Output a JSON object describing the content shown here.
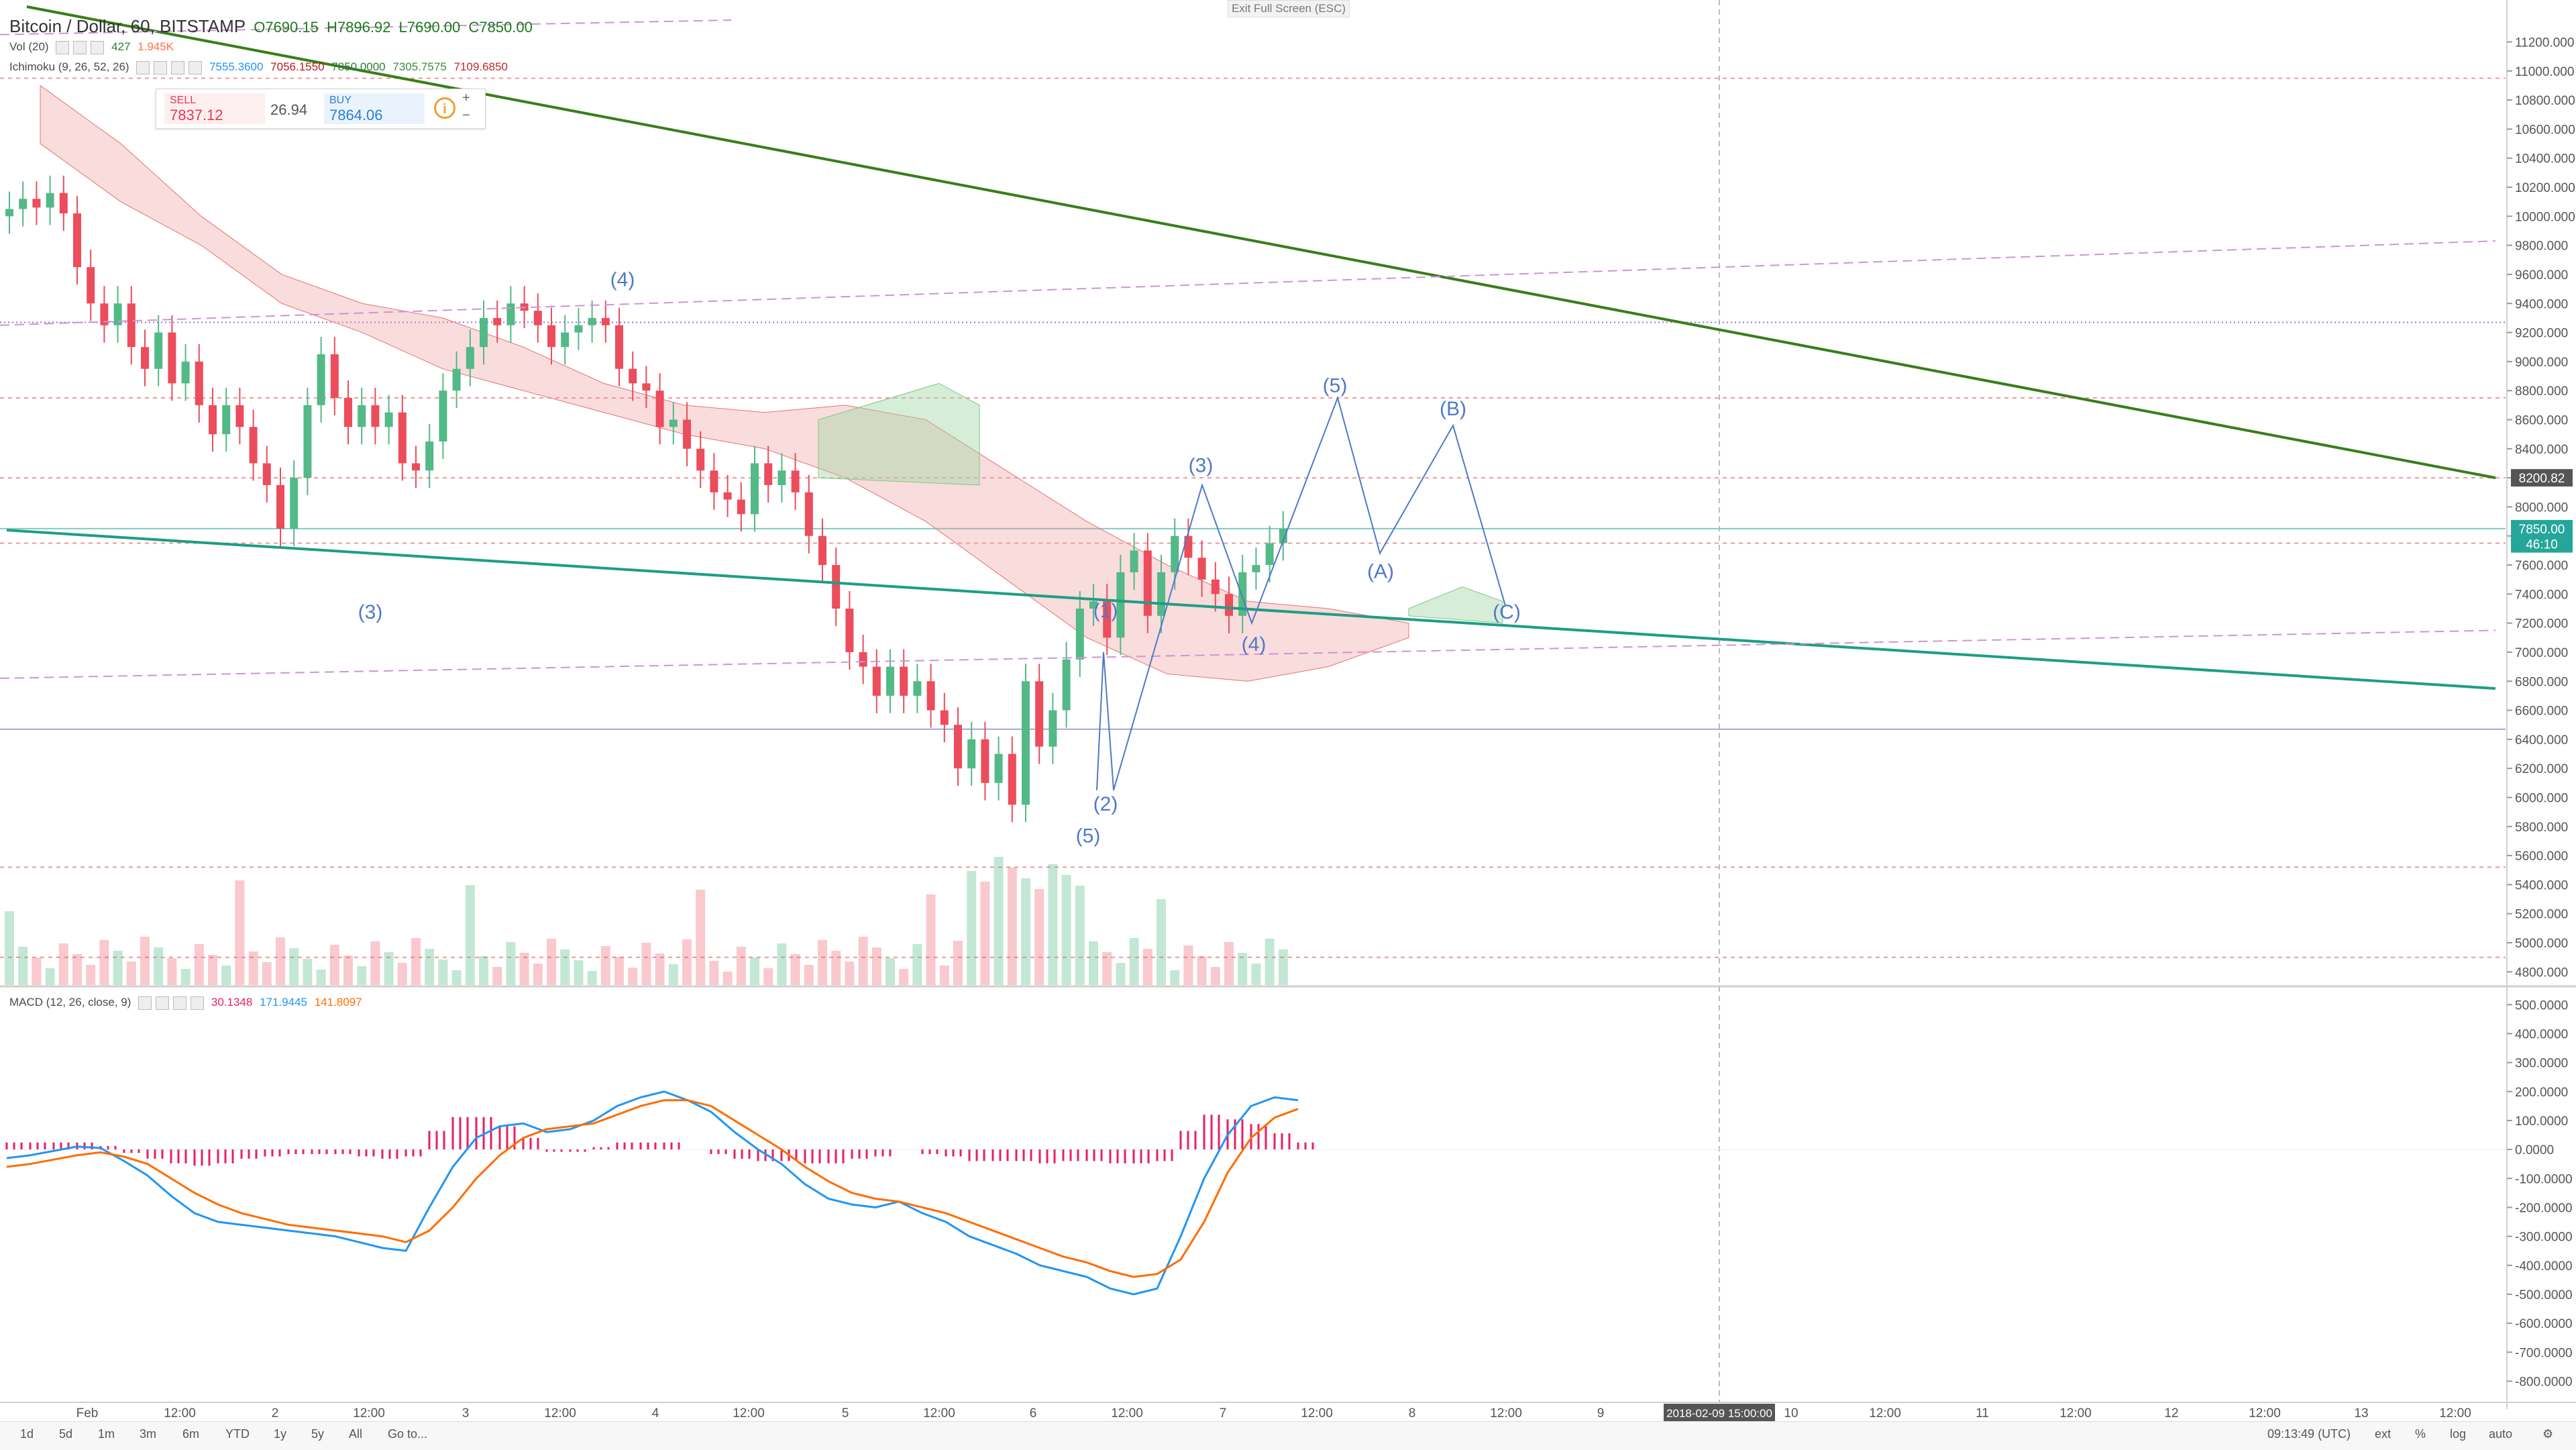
{
  "header": {
    "symbol": "Bitcoin / Dollar, 60, BITSTAMP",
    "ohlc": {
      "o": "O7690.15",
      "h": "H7896.92",
      "l": "L7690.00",
      "c": "C7850.00"
    },
    "vol_label": "Vol (20)",
    "vol_value": "427",
    "vol_ma": "1.945K",
    "ichimoku_label": "Ichimoku (9, 26, 52, 26)",
    "ichimoku_values": [
      "7555.3600",
      "7056.1550",
      "7850.0000",
      "7305.7575",
      "7109.6850"
    ],
    "exit_fullscreen": "Exit Full Screen (ESC)"
  },
  "trade_widget": {
    "sell_label": "SELL",
    "sell_price": "7837.12",
    "spread": "26.94",
    "buy_label": "BUY",
    "buy_price": "7864.06",
    "info_icon": "i",
    "plus": "+",
    "minus": "−"
  },
  "macd_header": {
    "label": "MACD (12, 26, close, 9)",
    "values": [
      "30.1348",
      "171.9445",
      "141.8097"
    ]
  },
  "bottom_bar": {
    "ranges": [
      "1d",
      "5d",
      "1m",
      "3m",
      "6m",
      "YTD",
      "1y",
      "5y",
      "All",
      "Go to..."
    ],
    "time": "09:13:49 (UTC)",
    "controls": [
      "ext",
      "%",
      "log",
      "auto"
    ]
  },
  "chart_data": {
    "type": "candlestick",
    "symbol": "Bitcoin / Dollar",
    "interval": "60",
    "exchange": "BITSTAMP",
    "price_axis": {
      "range": [
        4700,
        11350
      ],
      "ticks": [
        4800,
        5000,
        5200,
        5400,
        5600,
        5800,
        6000,
        6200,
        6400,
        6600,
        6800,
        7000,
        7200,
        7400,
        7600,
        7800,
        8000,
        8200,
        8400,
        8600,
        8800,
        9000,
        9200,
        9400,
        9600,
        9800,
        10000,
        10200,
        10400,
        10600,
        10800,
        11000,
        11200
      ],
      "last_price_label": "7850.00",
      "countdown_label": "46:10",
      "crosshair_label": "8200.82"
    },
    "macd_axis": {
      "range": [
        -850,
        540
      ],
      "ticks": [
        500,
        400,
        300,
        200,
        100,
        0,
        -100,
        -200,
        -300,
        -400,
        -500,
        -600,
        -700,
        -800
      ]
    },
    "time_axis": {
      "labels": [
        "Feb",
        "12:00",
        "2",
        "12:00",
        "3",
        "12:00",
        "4",
        "12:00",
        "5",
        "12:00",
        "6",
        "12:00",
        "7",
        "12:00",
        "8",
        "12:00",
        "9",
        "10",
        "12:00",
        "11",
        "12:00",
        "12",
        "12:00",
        "13",
        "12:00"
      ],
      "crosshair_label": "2018-02-09 15:00:00"
    },
    "close_series": [
      10050,
      10120,
      10060,
      10160,
      10020,
      9650,
      9400,
      9250,
      9400,
      9100,
      8950,
      9200,
      8850,
      9000,
      8700,
      8500,
      8700,
      8550,
      8300,
      8150,
      7850,
      8200,
      8700,
      9050,
      8750,
      8550,
      8700,
      8550,
      8650,
      8300,
      8250,
      8450,
      8800,
      8950,
      9100,
      9300,
      9250,
      9400,
      9350,
      9250,
      9100,
      9200,
      9250,
      9300,
      9250,
      8950,
      8850,
      8800,
      8550,
      8600,
      8400,
      8250,
      8100,
      8050,
      7950,
      8300,
      8150,
      8250,
      8100,
      7800,
      7600,
      7300,
      7000,
      6900,
      6700,
      6900,
      6700,
      6800,
      6600,
      6500,
      6200,
      6400,
      6100,
      6300,
      5950,
      6800,
      6350,
      6600,
      6950,
      7300,
      7350,
      7100,
      7550,
      7700,
      7250,
      7550,
      7800,
      7650,
      7500,
      7400,
      7250,
      7550,
      7600,
      7750,
      7850
    ],
    "wave_labels": [
      "(3)",
      "(4)",
      "(5)",
      "(1)",
      "(2)",
      "(3)",
      "(4)",
      "(5)",
      "(A)",
      "(B)",
      "(C)"
    ],
    "series": [
      {
        "name": "Volume"
      },
      {
        "name": "Ichimoku"
      },
      {
        "name": "MACD"
      }
    ],
    "colors": {
      "up": "#53b987",
      "down": "#eb4d5c",
      "macd": "#2196f3",
      "signal": "#ff6d00",
      "hist": "#e91e63",
      "trend": "#3a7d1a",
      "channel": "#1e9e84",
      "wave": "#4f79c8"
    }
  }
}
